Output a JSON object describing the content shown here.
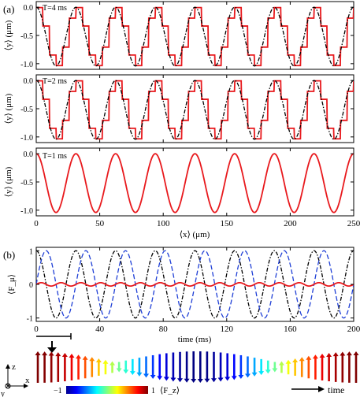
{
  "figure": {
    "panel_a_label": "(a)",
    "panel_b_label": "(b)",
    "colors": {
      "red": "#e8191d",
      "black": "#000000",
      "blue": "#1f3fd6",
      "axis": "#000000"
    }
  },
  "chart_data": [
    {
      "type": "line",
      "panel": "a-top",
      "annotation": "T=4 ms",
      "ylabel": "⟨y⟩ (μm)",
      "xlim": [
        0,
        250
      ],
      "ylim": [
        -1.1,
        0.1
      ],
      "yticks": [
        0,
        -0.5,
        -1
      ],
      "ytick_labels": [
        "0.0",
        "-0.5",
        "-1.0"
      ],
      "xticks": [
        0,
        50,
        100,
        150,
        200,
        250
      ],
      "series": [
        {
          "style": "red solid (step-like)",
          "color": "#e8191d",
          "amplitude": 0.52,
          "offset": -0.52,
          "period_um": 31.25,
          "stepped": true
        },
        {
          "style": "black dash-dot",
          "color": "#000000",
          "amplitude": 0.52,
          "offset": -0.52,
          "period_um": 31.25
        }
      ]
    },
    {
      "type": "line",
      "panel": "a-middle",
      "annotation": "T=2 ms",
      "ylabel": "⟨y⟩ (μm)",
      "xlim": [
        0,
        250
      ],
      "ylim": [
        -1.1,
        0.1
      ],
      "yticks": [
        0,
        -0.5,
        -1
      ],
      "ytick_labels": [
        "0.0",
        "-0.5",
        "-1.0"
      ],
      "xticks": [
        0,
        50,
        100,
        150,
        200,
        250
      ],
      "series": [
        {
          "style": "red solid (step-like)",
          "color": "#e8191d",
          "amplitude": 0.52,
          "offset": -0.52,
          "period_um": 31.25,
          "stepped": true
        },
        {
          "style": "black dash-dot",
          "color": "#000000",
          "amplitude": 0.52,
          "offset": -0.52,
          "period_um": 31.25
        }
      ]
    },
    {
      "type": "line",
      "panel": "a-bottom",
      "annotation": "T=1 ms",
      "ylabel": "⟨y⟩ (μm)",
      "xlabel": "⟨x⟩ (μm)",
      "xlim": [
        0,
        250
      ],
      "ylim": [
        -1.1,
        0.1
      ],
      "yticks": [
        0,
        -0.5,
        -1
      ],
      "ytick_labels": [
        "0.0",
        "-0.5",
        "-1.0"
      ],
      "xticks": [
        0,
        50,
        100,
        150,
        200,
        250
      ],
      "xtick_labels": [
        "0",
        "50",
        "100",
        "150",
        "200",
        "250"
      ],
      "series": [
        {
          "style": "red solid",
          "color": "#e8191d",
          "amplitude": 0.52,
          "offset": -0.52,
          "period_um": 31.25
        }
      ]
    },
    {
      "type": "line",
      "panel": "b",
      "ylabel": "⟨F_μ⟩",
      "xlabel": "time (ms)",
      "xlim": [
        0,
        200
      ],
      "ylim": [
        -1.1,
        1.1
      ],
      "yticks": [
        1,
        0,
        -1
      ],
      "ytick_labels": [
        "1",
        "0",
        "-1"
      ],
      "xticks": [
        0,
        40,
        80,
        120,
        160,
        200
      ],
      "xtick_labels": [
        "0",
        "40",
        "80",
        "120",
        "160",
        "200"
      ],
      "series": [
        {
          "style": "black dash-dot",
          "color": "#000000",
          "amplitude": 1.0,
          "period_ms": 25,
          "phase": "cos"
        },
        {
          "style": "blue dashed",
          "color": "#1f3fd6",
          "amplitude": 1.0,
          "period_ms": 25,
          "phase": "sin"
        },
        {
          "style": "red solid",
          "color": "#e8191d",
          "amplitude": 0.05,
          "period_ms": 12.5
        }
      ]
    }
  ],
  "spin_strip": {
    "axis_z": "z",
    "axis_x": "x",
    "axis_y": "y",
    "colorbar_min": "−1",
    "colorbar_max": "1",
    "colorbar_label": "⟨F_z⟩",
    "time_label": "time",
    "arrow_count": 48
  }
}
